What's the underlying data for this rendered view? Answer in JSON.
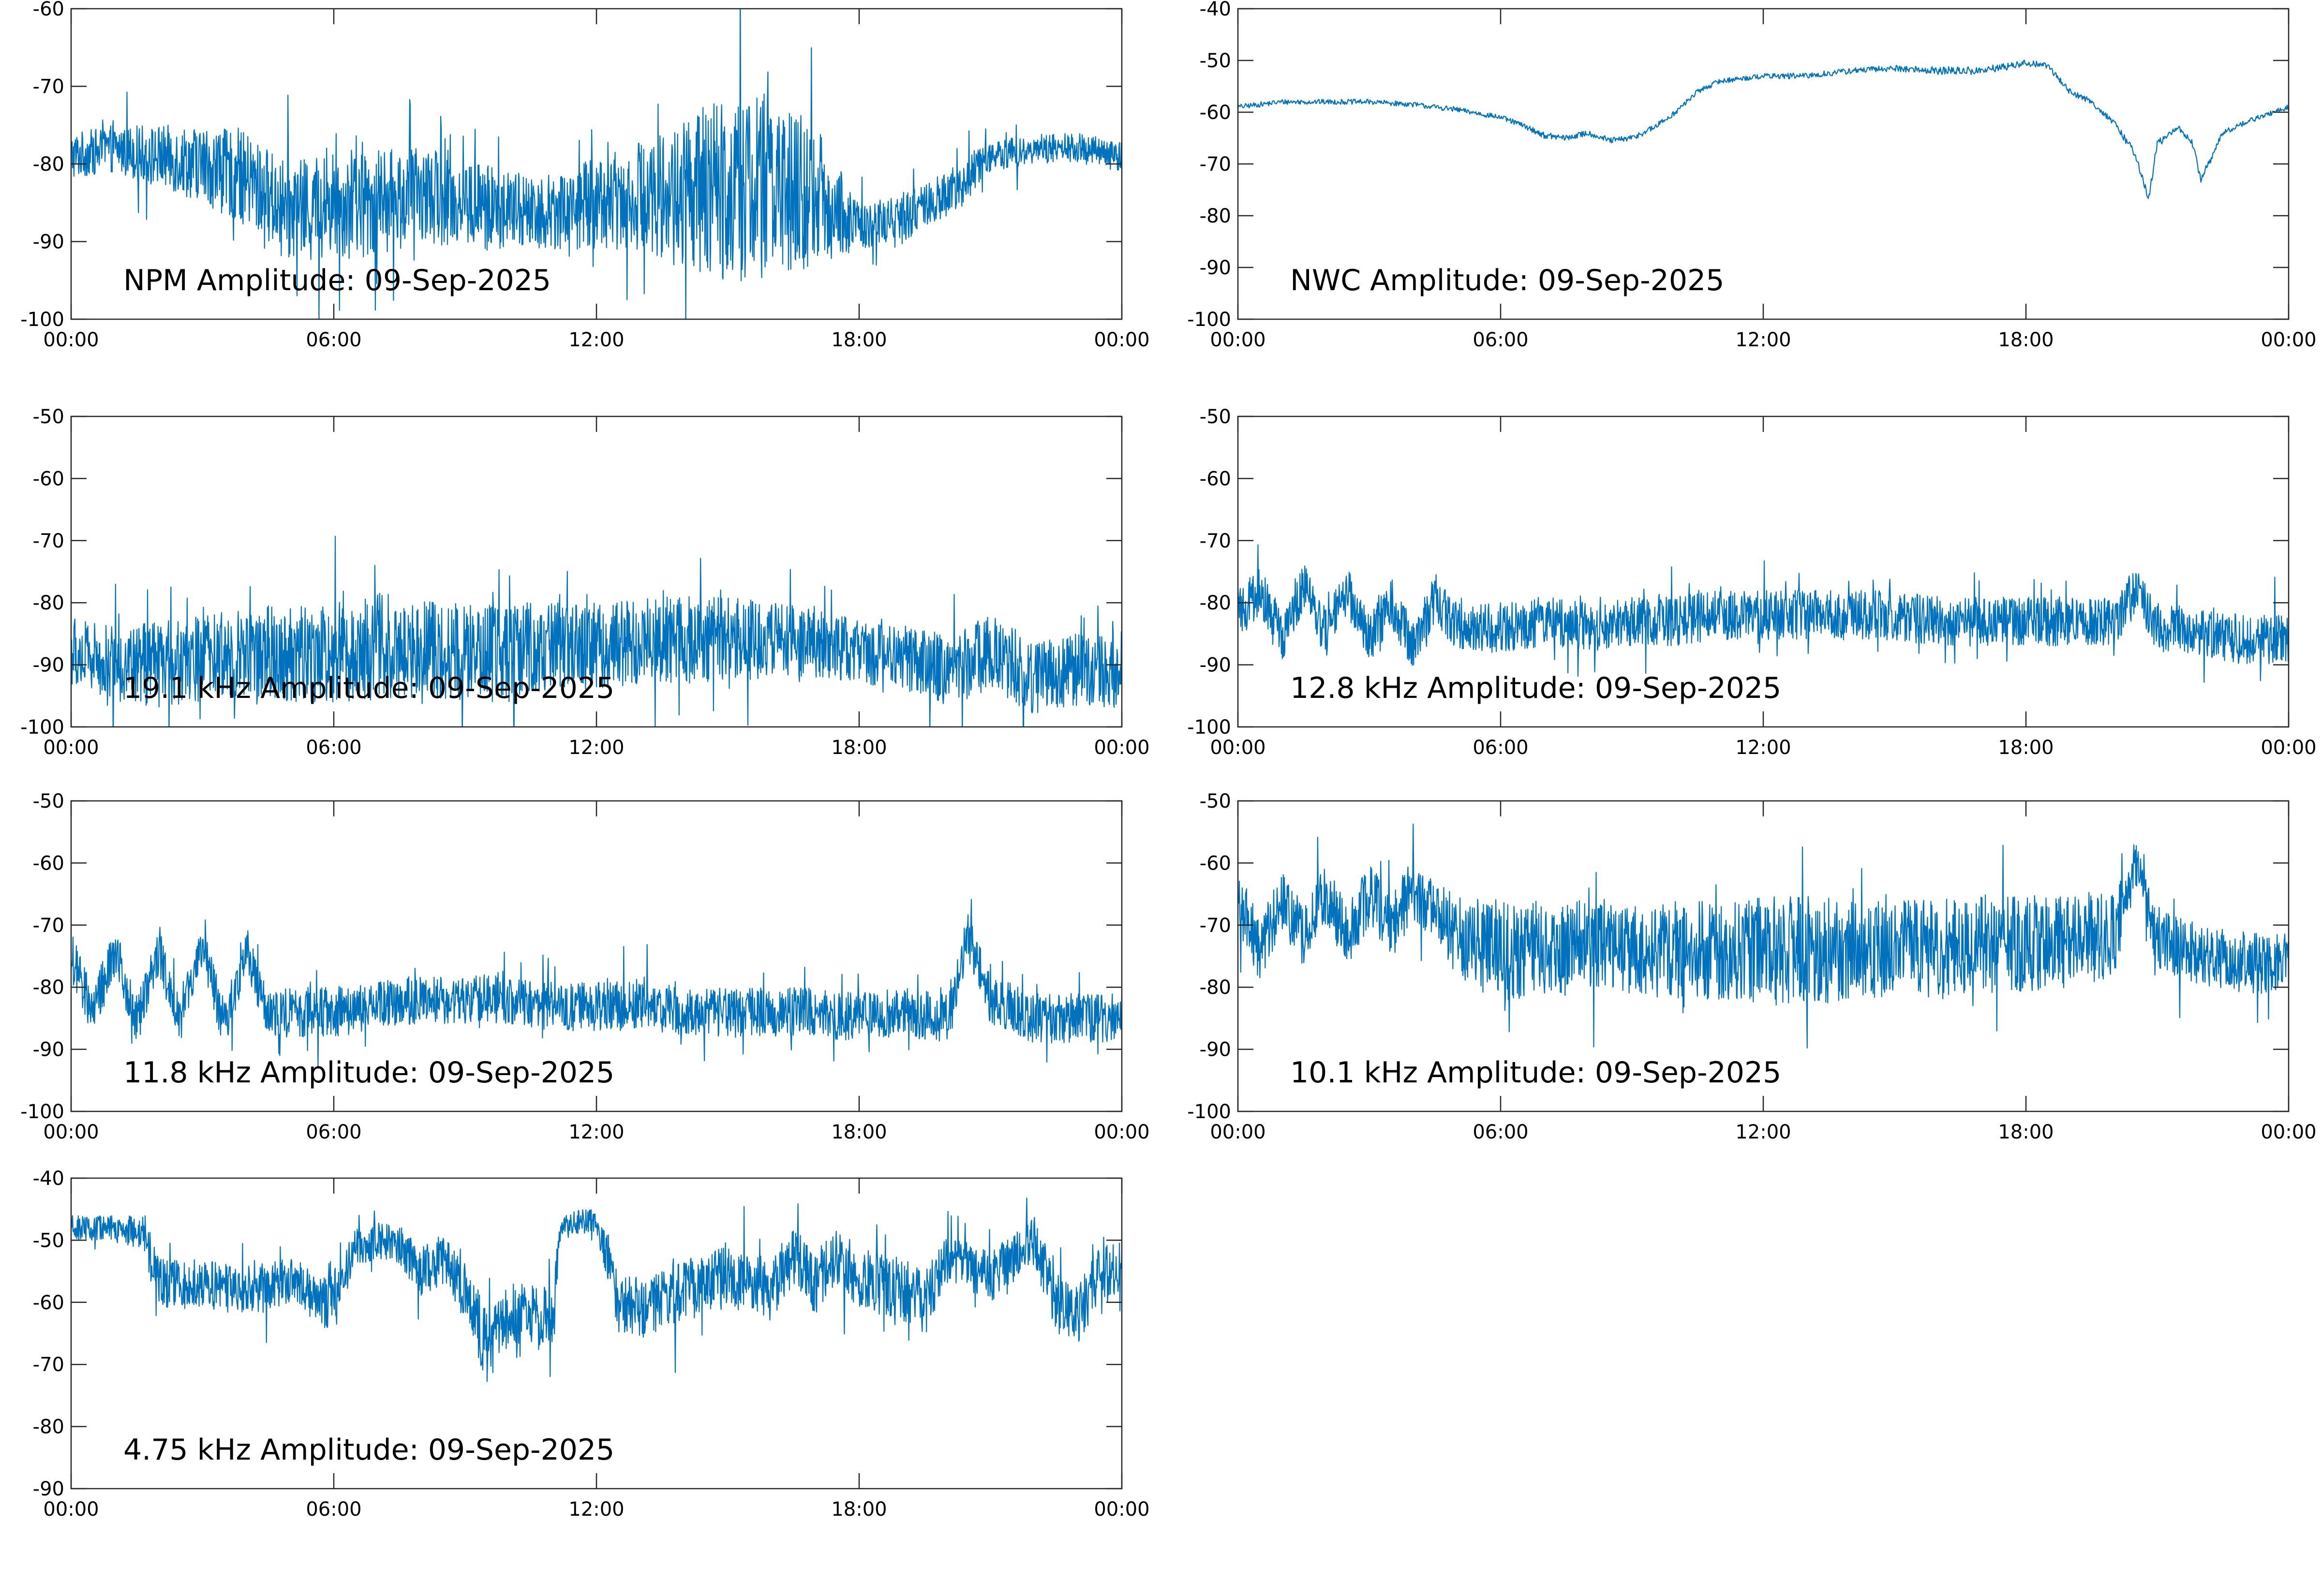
{
  "colors": {
    "trace": "#0072BD",
    "axes": "#262626",
    "background": "#ffffff"
  },
  "chart_data": [
    {
      "type": "line",
      "title": "NPM Amplitude: 09-Sep-2025",
      "xlabel": "",
      "ylabel": "",
      "xlim": [
        0,
        24
      ],
      "ylim": [
        -100,
        -60
      ],
      "xticks": [
        0,
        6,
        12,
        18,
        24
      ],
      "xtick_labels": [
        "00:00",
        "06:00",
        "12:00",
        "18:00",
        "00:00"
      ],
      "yticks": [
        -100,
        -90,
        -80,
        -70,
        -60
      ],
      "ytick_labels": [
        "-100",
        "-90",
        "-80",
        "-70",
        "-60"
      ],
      "grid": false,
      "series": [
        {
          "x": [
            0,
            1,
            2,
            3,
            4,
            5,
            6,
            7,
            8,
            9,
            10,
            11,
            12,
            13,
            14,
            15,
            16,
            17,
            18,
            19,
            20,
            21,
            22,
            23,
            24
          ],
          "values": [
            -79,
            -78,
            -79,
            -80,
            -82,
            -86,
            -85,
            -85,
            -84,
            -85,
            -86,
            -86,
            -85,
            -84,
            -84,
            -83,
            -83,
            -84,
            -88,
            -87,
            -84,
            -79,
            -78,
            -78,
            -79
          ],
          "spread": [
            3,
            3,
            4,
            5,
            6,
            6,
            7,
            7,
            6,
            6,
            5,
            5,
            6,
            7,
            10,
            12,
            12,
            9,
            3,
            3,
            3,
            2,
            2,
            2,
            2
          ]
        }
      ]
    },
    {
      "type": "line",
      "title": "NWC Amplitude: 09-Sep-2025",
      "xlabel": "",
      "ylabel": "",
      "xlim": [
        0,
        24
      ],
      "ylim": [
        -100,
        -40
      ],
      "xticks": [
        0,
        6,
        12,
        18,
        24
      ],
      "xtick_labels": [
        "00:00",
        "06:00",
        "12:00",
        "18:00",
        "00:00"
      ],
      "yticks": [
        -100,
        -90,
        -80,
        -70,
        -60,
        -50,
        -40
      ],
      "ytick_labels": [
        "-100",
        "-90",
        "-80",
        "-70",
        "-60",
        "-50",
        "-40"
      ],
      "grid": false,
      "series": [
        {
          "x": [
            0,
            1,
            2,
            3,
            4,
            5,
            6,
            6.5,
            7,
            7.5,
            8,
            8.5,
            9,
            9.5,
            10,
            10.5,
            11,
            12,
            13,
            14,
            15,
            16,
            17,
            18,
            18.5,
            19,
            19.5,
            20,
            20.5,
            20.8,
            21,
            21.5,
            21.8,
            22,
            22.5,
            23,
            24
          ],
          "values": [
            -59,
            -58,
            -58,
            -58,
            -58.5,
            -59.5,
            -61,
            -62.5,
            -64.5,
            -65,
            -64,
            -65.5,
            -65,
            -63,
            -60,
            -56,
            -54,
            -53,
            -53,
            -52,
            -51.5,
            -52,
            -52,
            -50.5,
            -51,
            -56,
            -58,
            -62,
            -68,
            -77,
            -66,
            -63,
            -66,
            -73,
            -64,
            -62,
            -59
          ],
          "spread": [
            0.5,
            0.5,
            0.5,
            0.5,
            0.5,
            0.5,
            0.5,
            0.5,
            0.6,
            0.6,
            0.6,
            0.6,
            0.6,
            0.6,
            0.5,
            0.5,
            0.5,
            0.5,
            0.6,
            0.6,
            0.6,
            0.8,
            0.8,
            0.6,
            0.6,
            0.6,
            0.6,
            0.6,
            0.8,
            0.8,
            0.8,
            0.6,
            0.6,
            0.8,
            0.6,
            0.5,
            0.5
          ]
        }
      ]
    },
    {
      "type": "line",
      "title": "19.1 kHz Amplitude: 09-Sep-2025",
      "xlabel": "",
      "ylabel": "",
      "xlim": [
        0,
        24
      ],
      "ylim": [
        -100,
        -50
      ],
      "xticks": [
        0,
        6,
        12,
        18,
        24
      ],
      "xtick_labels": [
        "00:00",
        "06:00",
        "12:00",
        "18:00",
        "00:00"
      ],
      "yticks": [
        -100,
        -90,
        -80,
        -70,
        -60,
        -50
      ],
      "ytick_labels": [
        "-100",
        "-90",
        "-80",
        "-70",
        "-60",
        "-50"
      ],
      "grid": false,
      "series": [
        {
          "x": [
            0,
            1,
            2,
            3,
            4,
            5,
            6,
            7,
            8,
            9,
            10,
            11,
            12,
            13,
            14,
            15,
            16,
            17,
            18,
            19,
            20,
            21,
            22,
            23,
            24
          ],
          "values": [
            -88,
            -90,
            -90,
            -89,
            -88,
            -88,
            -88,
            -87,
            -87,
            -88,
            -88,
            -87,
            -87,
            -86,
            -86,
            -86,
            -86,
            -86,
            -88,
            -89,
            -91,
            -88,
            -92,
            -91,
            -91
          ],
          "spread": [
            6,
            6,
            7,
            7,
            7,
            8,
            8,
            9,
            8,
            8,
            8,
            7,
            7,
            7,
            7,
            7,
            6,
            6,
            5,
            5,
            6,
            6,
            6,
            6,
            6
          ]
        }
      ]
    },
    {
      "type": "line",
      "title": "12.8 kHz Amplitude: 09-Sep-2025",
      "xlabel": "",
      "ylabel": "",
      "xlim": [
        0,
        24
      ],
      "ylim": [
        -100,
        -50
      ],
      "xticks": [
        0,
        6,
        12,
        18,
        24
      ],
      "xtick_labels": [
        "00:00",
        "06:00",
        "12:00",
        "18:00",
        "00:00"
      ],
      "yticks": [
        -100,
        -90,
        -80,
        -70,
        -60,
        -50
      ],
      "ytick_labels": [
        "-100",
        "-90",
        "-80",
        "-70",
        "-60",
        "-50"
      ],
      "grid": false,
      "series": [
        {
          "x": [
            0,
            0.5,
            1,
            1.5,
            2,
            2.5,
            3,
            3.5,
            4,
            4.5,
            5,
            6,
            7,
            8,
            9,
            10,
            11,
            12,
            13,
            14,
            15,
            16,
            17,
            18,
            19,
            20,
            20.5,
            21,
            22,
            23,
            24
          ],
          "values": [
            -82,
            -78,
            -86,
            -77,
            -85,
            -78,
            -86,
            -80,
            -87,
            -79,
            -84,
            -84,
            -83,
            -84,
            -83,
            -83,
            -82,
            -82,
            -82,
            -82,
            -82,
            -83,
            -83,
            -83,
            -83,
            -83,
            -78,
            -84,
            -85,
            -86,
            -86
          ],
          "spread": [
            4,
            4,
            4,
            4,
            4,
            4,
            4,
            4,
            4,
            4,
            4,
            4,
            4,
            4,
            4,
            4,
            4,
            4,
            4,
            4,
            4,
            4,
            4,
            4,
            4,
            4,
            4,
            4,
            4,
            4,
            4
          ]
        }
      ]
    },
    {
      "type": "line",
      "title": "11.8 kHz Amplitude: 09-Sep-2025",
      "xlabel": "",
      "ylabel": "",
      "xlim": [
        0,
        24
      ],
      "ylim": [
        -100,
        -50
      ],
      "xticks": [
        0,
        6,
        12,
        18,
        24
      ],
      "xtick_labels": [
        "00:00",
        "06:00",
        "12:00",
        "18:00",
        "00:00"
      ],
      "yticks": [
        -100,
        -90,
        -80,
        -70,
        -60,
        -50
      ],
      "ytick_labels": [
        "-100",
        "-90",
        "-80",
        "-70",
        "-60",
        "-50"
      ],
      "grid": false,
      "series": [
        {
          "x": [
            0,
            0.5,
            1,
            1.5,
            2,
            2.5,
            3,
            3.5,
            4,
            4.5,
            5,
            6,
            7,
            8,
            9,
            10,
            11,
            12,
            13,
            14,
            15,
            16,
            17,
            18,
            19,
            20,
            20.5,
            21,
            22,
            23,
            24
          ],
          "values": [
            -75,
            -84,
            -74,
            -85,
            -74,
            -85,
            -74,
            -86,
            -74,
            -85,
            -84,
            -84,
            -83,
            -82,
            -82,
            -82,
            -83,
            -83,
            -83,
            -84,
            -84,
            -84,
            -84,
            -85,
            -84,
            -85,
            -72,
            -82,
            -85,
            -85,
            -85
          ],
          "spread": [
            4,
            4,
            4,
            4,
            4,
            4,
            4,
            4,
            4,
            4,
            4,
            4,
            4,
            4,
            4,
            4,
            4,
            4,
            4,
            4,
            4,
            4,
            4,
            4,
            4,
            4,
            4,
            4,
            4,
            4,
            4
          ]
        }
      ]
    },
    {
      "type": "line",
      "title": "10.1 kHz Amplitude: 09-Sep-2025",
      "xlabel": "",
      "ylabel": "",
      "xlim": [
        0,
        24
      ],
      "ylim": [
        -100,
        -50
      ],
      "xticks": [
        0,
        6,
        12,
        18,
        24
      ],
      "xtick_labels": [
        "00:00",
        "06:00",
        "12:00",
        "18:00",
        "00:00"
      ],
      "yticks": [
        -100,
        -90,
        -80,
        -70,
        -60,
        -50
      ],
      "ytick_labels": [
        "-100",
        "-90",
        "-80",
        "-70",
        "-60",
        "-50"
      ],
      "grid": false,
      "series": [
        {
          "x": [
            0,
            0.5,
            1,
            1.5,
            2,
            2.5,
            3,
            3.5,
            4,
            4.5,
            5,
            6,
            7,
            8,
            9,
            10,
            11,
            12,
            13,
            14,
            15,
            16,
            17,
            18,
            19,
            20,
            20.5,
            21,
            22,
            23,
            24
          ],
          "values": [
            -66,
            -74,
            -66,
            -72,
            -65,
            -72,
            -65,
            -70,
            -64,
            -68,
            -72,
            -74,
            -74,
            -73,
            -74,
            -74,
            -74,
            -74,
            -74,
            -74,
            -74,
            -74,
            -73,
            -73,
            -72,
            -72,
            -60,
            -72,
            -75,
            -76,
            -76
          ],
          "spread": [
            5,
            5,
            5,
            5,
            5,
            5,
            5,
            5,
            5,
            5,
            7,
            8,
            8,
            7,
            7,
            8,
            8,
            9,
            9,
            8,
            8,
            8,
            8,
            8,
            7,
            7,
            4,
            5,
            5,
            5,
            5
          ]
        }
      ]
    },
    {
      "type": "line",
      "title": "4.75 kHz Amplitude: 09-Sep-2025",
      "xlabel": "",
      "ylabel": "",
      "xlim": [
        0,
        24
      ],
      "ylim": [
        -90,
        -40
      ],
      "xticks": [
        0,
        6,
        12,
        18,
        24
      ],
      "xtick_labels": [
        "00:00",
        "06:00",
        "12:00",
        "18:00",
        "00:00"
      ],
      "yticks": [
        -90,
        -80,
        -70,
        -60,
        -50,
        -40
      ],
      "ytick_labels": [
        "-90",
        "-80",
        "-70",
        "-60",
        "-50",
        "-40"
      ],
      "grid": false,
      "series": [
        {
          "x": [
            0,
            1,
            1.7,
            2,
            3,
            4,
            5,
            6,
            6.5,
            7,
            7.5,
            8,
            8.5,
            9,
            9.5,
            10,
            11,
            11.2,
            12,
            12.5,
            13,
            14,
            15,
            16,
            16.5,
            17,
            17.5,
            18,
            19,
            19.5,
            20,
            21,
            22,
            22.5,
            23,
            23.5,
            24
          ],
          "values": [
            -48,
            -48,
            -49,
            -57,
            -57,
            -58,
            -57,
            -60,
            -51,
            -50,
            -51,
            -55,
            -53,
            -58,
            -67,
            -62,
            -62,
            -47,
            -47,
            -60,
            -61,
            -58,
            -56,
            -58,
            -52,
            -57,
            -52,
            -56,
            -58,
            -60,
            -53,
            -56,
            -50,
            -60,
            -62,
            -55,
            -55
          ],
          "spread": [
            2,
            2,
            3,
            4,
            4,
            4,
            4,
            5,
            3,
            3,
            3,
            4,
            4,
            5,
            6,
            5,
            5,
            2,
            2,
            5,
            5,
            5,
            5,
            5,
            5,
            5,
            5,
            5,
            5,
            5,
            4,
            4,
            4,
            5,
            5,
            5,
            5
          ]
        }
      ]
    }
  ]
}
